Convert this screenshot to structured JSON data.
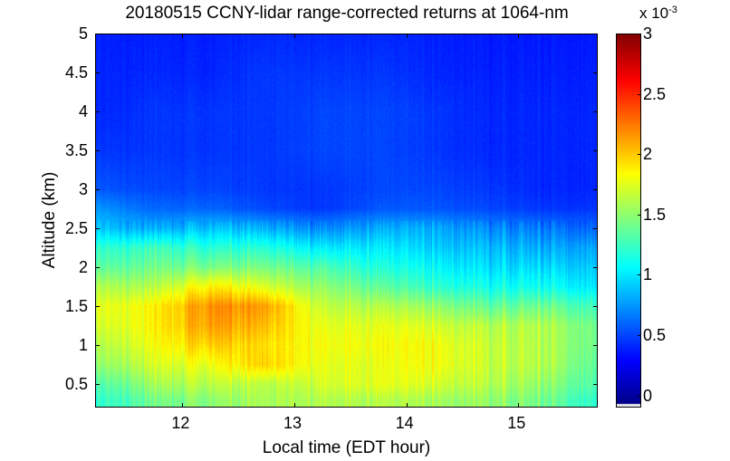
{
  "chart_data": {
    "type": "heatmap",
    "title": "20180515 CCNY-lidar range-corrected returns at 1064-nm",
    "xlabel": "Local time (EDT hour)",
    "ylabel": "Altitude (km)",
    "xlim": [
      11.22,
      15.71
    ],
    "ylim": [
      0.2,
      5
    ],
    "xticks": [
      12,
      13,
      14,
      15
    ],
    "yticks": [
      0.5,
      1,
      1.5,
      2,
      2.5,
      3,
      3.5,
      4,
      4.5,
      5
    ],
    "xtick_labels": [
      "12",
      "13",
      "14",
      "15"
    ],
    "ytick_labels": [
      "0.5",
      "1",
      "1.5",
      "2",
      "2.5",
      "3",
      "3.5",
      "4",
      "4.5",
      "5"
    ],
    "colormap": "jet",
    "colorbar": {
      "clim": [
        -0.1,
        3
      ],
      "ticks": [
        0,
        0.5,
        1,
        1.5,
        2,
        2.5,
        3
      ],
      "tick_labels": [
        "0",
        "0.5",
        "1",
        "1.5",
        "2",
        "2.5",
        "3"
      ],
      "exponent_label": "x 10",
      "exponent": "-3"
    },
    "grid_times": [
      11.25,
      11.75,
      12.25,
      12.75,
      13.25,
      13.75,
      14.25,
      14.75,
      15.25,
      15.7
    ],
    "grid_altitudes": [
      0.3,
      0.5,
      0.75,
      1.0,
      1.25,
      1.5,
      1.75,
      2.0,
      2.25,
      2.5,
      2.75,
      3.0,
      3.5,
      4.0,
      4.5,
      5.0
    ],
    "values_e-3": [
      [
        1.2,
        1.4,
        1.5,
        1.55,
        1.6,
        1.6,
        1.55,
        1.5,
        1.4,
        1.2
      ],
      [
        1.3,
        1.55,
        1.65,
        1.6,
        1.7,
        1.75,
        1.7,
        1.6,
        1.5,
        1.3
      ],
      [
        1.5,
        1.7,
        1.8,
        1.95,
        1.75,
        1.75,
        1.8,
        1.65,
        1.6,
        1.35
      ],
      [
        1.6,
        1.8,
        2.0,
        1.9,
        1.8,
        1.8,
        1.8,
        1.65,
        1.6,
        1.4
      ],
      [
        1.7,
        1.85,
        2.15,
        2.0,
        1.75,
        1.75,
        1.7,
        1.6,
        1.6,
        1.4
      ],
      [
        1.75,
        1.85,
        2.2,
        2.1,
        1.65,
        1.6,
        1.5,
        1.35,
        1.4,
        1.25
      ],
      [
        1.6,
        1.6,
        1.9,
        1.7,
        1.5,
        1.35,
        1.2,
        1.1,
        1.1,
        1.0
      ],
      [
        1.35,
        1.4,
        1.45,
        1.4,
        1.3,
        1.15,
        1.05,
        0.95,
        0.95,
        0.9
      ],
      [
        1.2,
        1.25,
        1.2,
        1.15,
        1.0,
        1.0,
        0.9,
        0.85,
        0.8,
        0.8
      ],
      [
        0.9,
        0.8,
        0.9,
        0.8,
        0.7,
        0.8,
        0.8,
        0.7,
        0.65,
        0.6
      ],
      [
        0.75,
        0.6,
        0.6,
        0.5,
        0.45,
        0.55,
        0.55,
        0.5,
        0.45,
        0.45
      ],
      [
        0.55,
        0.5,
        0.5,
        0.45,
        0.45,
        0.5,
        0.5,
        0.45,
        0.4,
        0.4
      ],
      [
        0.45,
        0.45,
        0.45,
        0.45,
        0.5,
        0.5,
        0.45,
        0.4,
        0.4,
        0.4
      ],
      [
        0.4,
        0.45,
        0.45,
        0.45,
        0.5,
        0.5,
        0.45,
        0.4,
        0.4,
        0.4
      ],
      [
        0.4,
        0.4,
        0.4,
        0.45,
        0.45,
        0.45,
        0.4,
        0.38,
        0.38,
        0.38
      ],
      [
        0.38,
        0.38,
        0.38,
        0.4,
        0.4,
        0.4,
        0.38,
        0.36,
        0.36,
        0.36
      ]
    ]
  }
}
